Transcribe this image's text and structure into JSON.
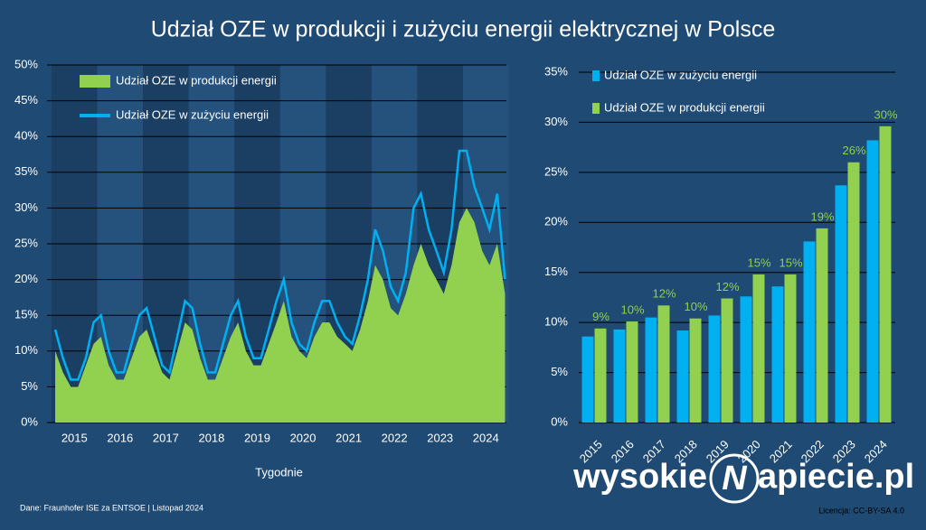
{
  "title": "Udział OZE w produkcji i zużyciu energii elektrycznej w Polsce",
  "source": "Dane: Fraunhofer ISE za ENTSOE  |  Listopad 2024",
  "license": "Licencja: CC-BY-SA 4.0",
  "logo": {
    "left": "wysokie",
    "mark": "N",
    "right": "apiecie.pl"
  },
  "chart_data": [
    {
      "type": "line",
      "x_label": "Tygodnie",
      "xlim": [
        2015,
        2024.95
      ],
      "ylim": [
        0,
        50
      ],
      "xticks": [
        {
          "value": 2015.5,
          "label": "2015"
        },
        {
          "value": 2016.5,
          "label": "2016"
        },
        {
          "value": 2017.5,
          "label": "2017"
        },
        {
          "value": 2018.5,
          "label": "2018"
        },
        {
          "value": 2019.5,
          "label": "2019"
        },
        {
          "value": 2020.5,
          "label": "2020"
        },
        {
          "value": 2021.5,
          "label": "2021"
        },
        {
          "value": 2022.5,
          "label": "2022"
        },
        {
          "value": 2023.5,
          "label": "2023"
        },
        {
          "value": 2024.5,
          "label": "2024"
        }
      ],
      "yticks": [
        {
          "value": 0,
          "label": "0%"
        },
        {
          "value": 5,
          "label": "5%"
        },
        {
          "value": 10,
          "label": "10%"
        },
        {
          "value": 15,
          "label": "15%"
        },
        {
          "value": 20,
          "label": "20%"
        },
        {
          "value": 25,
          "label": "25%"
        },
        {
          "value": 30,
          "label": "30%"
        },
        {
          "value": 35,
          "label": "35%"
        },
        {
          "value": 40,
          "label": "40%"
        },
        {
          "value": 45,
          "label": "45%"
        },
        {
          "value": 50,
          "label": "50%"
        }
      ],
      "grid": true,
      "x": [
        2015.08,
        2015.25,
        2015.42,
        2015.58,
        2015.75,
        2015.92,
        2016.08,
        2016.25,
        2016.42,
        2016.58,
        2016.75,
        2016.92,
        2017.08,
        2017.25,
        2017.42,
        2017.58,
        2017.75,
        2017.92,
        2018.08,
        2018.25,
        2018.42,
        2018.58,
        2018.75,
        2018.92,
        2019.08,
        2019.25,
        2019.42,
        2019.58,
        2019.75,
        2019.92,
        2020.08,
        2020.25,
        2020.42,
        2020.58,
        2020.75,
        2020.92,
        2021.08,
        2021.25,
        2021.42,
        2021.58,
        2021.75,
        2021.92,
        2022.08,
        2022.25,
        2022.42,
        2022.58,
        2022.75,
        2022.92,
        2023.08,
        2023.25,
        2023.42,
        2023.58,
        2023.75,
        2023.92,
        2024.08,
        2024.25,
        2024.42,
        2024.58,
        2024.75,
        2024.92
      ],
      "series": [
        {
          "name": "Udział OZE w produkcji energii",
          "color": "#92d050",
          "style": "area",
          "values": [
            10,
            7,
            5,
            5,
            8,
            11,
            12,
            8,
            6,
            6,
            9,
            12,
            13,
            10,
            7,
            6,
            10,
            14,
            13,
            9,
            6,
            6,
            9,
            12,
            14,
            10,
            8,
            8,
            11,
            14,
            17,
            12,
            10,
            9,
            12,
            14,
            14,
            12,
            11,
            10,
            13,
            17,
            22,
            20,
            16,
            15,
            18,
            22,
            25,
            22,
            20,
            18,
            22,
            28,
            30,
            28,
            24,
            22,
            25,
            18
          ]
        },
        {
          "name": "Udział OZE w zużyciu energii",
          "color": "#00b0f0",
          "style": "line",
          "values": [
            13,
            9,
            6,
            6,
            9,
            14,
            15,
            10,
            7,
            7,
            11,
            15,
            16,
            12,
            8,
            7,
            12,
            17,
            16,
            11,
            7,
            7,
            11,
            15,
            17,
            12,
            9,
            9,
            13,
            17,
            20,
            14,
            11,
            10,
            14,
            17,
            17,
            14,
            12,
            11,
            15,
            20,
            27,
            24,
            19,
            17,
            21,
            30,
            32,
            27,
            24,
            21,
            27,
            38,
            38,
            33,
            30,
            27,
            32,
            20
          ]
        }
      ]
    },
    {
      "type": "bar",
      "ylim": [
        0,
        35
      ],
      "yticks": [
        {
          "value": 0,
          "label": "0%"
        },
        {
          "value": 5,
          "label": "5%"
        },
        {
          "value": 10,
          "label": "10%"
        },
        {
          "value": 15,
          "label": "15%"
        },
        {
          "value": 20,
          "label": "20%"
        },
        {
          "value": 25,
          "label": "25%"
        },
        {
          "value": 30,
          "label": "30%"
        },
        {
          "value": 35,
          "label": "35%"
        }
      ],
      "grid": true,
      "categories": [
        "2015",
        "2016",
        "2017",
        "2018",
        "2019",
        "2020",
        "2021",
        "2022",
        "2023",
        "2024"
      ],
      "series": [
        {
          "name": "Udział OZE w zużyciu energii",
          "color": "#00b0f0",
          "values": [
            8.6,
            9.3,
            10.5,
            9.2,
            10.7,
            12.6,
            13.6,
            18.1,
            23.7,
            28.2
          ]
        },
        {
          "name": "Udział OZE w produkcji energii",
          "color": "#92d050",
          "values": [
            9.4,
            10.1,
            11.7,
            10.4,
            12.4,
            14.8,
            14.8,
            19.4,
            26.0,
            29.6
          ],
          "value_labels": [
            "9%",
            "10%",
            "12%",
            "10%",
            "12%",
            "15%",
            "15%",
            "19%",
            "26%",
            "30%"
          ]
        }
      ]
    }
  ]
}
